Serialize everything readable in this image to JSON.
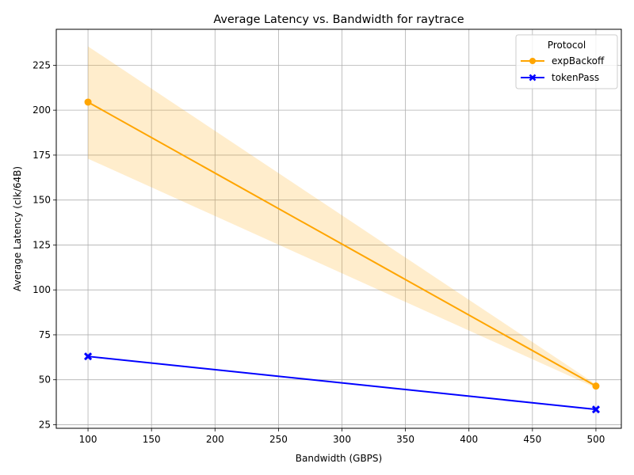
{
  "chart_data": {
    "type": "line",
    "title": "Average Latency vs. Bandwidth for raytrace",
    "xlabel": "Bandwidth (GBPS)",
    "ylabel": "Average Latency (clk/64B)",
    "xlim": [
      75,
      520
    ],
    "ylim": [
      23,
      245
    ],
    "xticks": [
      100,
      150,
      200,
      250,
      300,
      350,
      400,
      450,
      500
    ],
    "yticks": [
      25,
      50,
      75,
      100,
      125,
      150,
      175,
      200,
      225
    ],
    "grid": true,
    "legend": {
      "title": "Protocol",
      "placement": "top-right"
    },
    "series": [
      {
        "name": "expBackoff",
        "color": "#ffa500",
        "marker": "circle",
        "x": [
          100,
          500
        ],
        "y": [
          204.5,
          46.5
        ],
        "band_low": [
          173,
          45.5
        ],
        "band_high": [
          235.5,
          47.5
        ]
      },
      {
        "name": "tokenPass",
        "color": "#0000ff",
        "marker": "x",
        "x": [
          100,
          500
        ],
        "y": [
          63,
          33.5
        ]
      }
    ]
  }
}
